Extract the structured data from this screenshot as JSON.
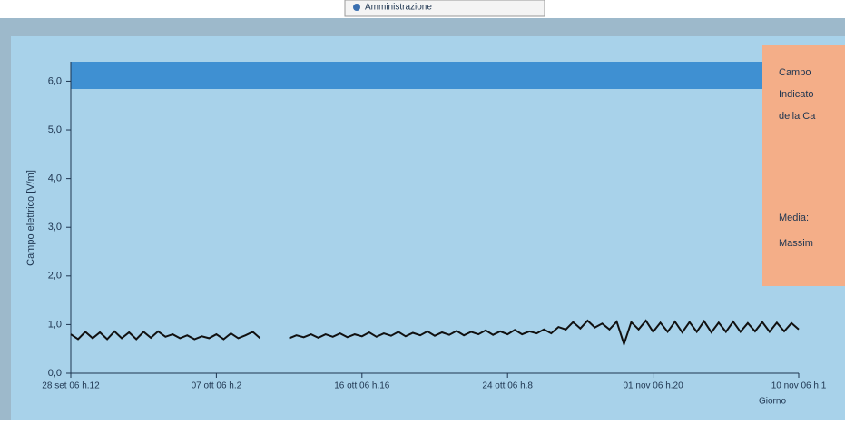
{
  "header": {
    "tab": "Amministrazione"
  },
  "chart_data": {
    "type": "line",
    "y_label": "Campo elettrico [V/m]",
    "x_label": "Giorno",
    "categories": [
      "28 set 06 h.12",
      null,
      null,
      null,
      null,
      null,
      null,
      null,
      null,
      null,
      null,
      null,
      null,
      null,
      null,
      null,
      null,
      null,
      null,
      null,
      "07 ott 06 h.2",
      null,
      null,
      null,
      null,
      null,
      null,
      null,
      null,
      null,
      null,
      null,
      null,
      null,
      null,
      null,
      null,
      null,
      null,
      null,
      "16 ott 06 h.16",
      null,
      null,
      null,
      null,
      null,
      null,
      null,
      null,
      null,
      null,
      null,
      null,
      null,
      null,
      null,
      null,
      null,
      null,
      null,
      "24 ott 06 h.8",
      null,
      null,
      null,
      null,
      null,
      null,
      null,
      null,
      null,
      null,
      null,
      null,
      null,
      null,
      null,
      null,
      null,
      null,
      null,
      "01 nov 06 h.20",
      null,
      null,
      null,
      null,
      null,
      null,
      null,
      null,
      null,
      null,
      null,
      null,
      null,
      null,
      null,
      null,
      null,
      null,
      null,
      "10 nov 06 h.1"
    ],
    "values": [
      0.8,
      0.7,
      0.85,
      0.72,
      0.84,
      0.7,
      0.86,
      0.72,
      0.84,
      0.7,
      0.85,
      0.73,
      0.86,
      0.75,
      0.8,
      0.72,
      0.78,
      0.7,
      0.76,
      0.72,
      0.8,
      0.7,
      0.82,
      0.72,
      0.78,
      0.85,
      0.72,
      null,
      null,
      null,
      0.72,
      0.78,
      0.74,
      0.8,
      0.73,
      0.8,
      0.75,
      0.82,
      0.74,
      0.8,
      0.76,
      0.84,
      0.75,
      0.82,
      0.77,
      0.85,
      0.76,
      0.83,
      0.78,
      0.86,
      0.77,
      0.84,
      0.79,
      0.87,
      0.78,
      0.85,
      0.8,
      0.88,
      0.79,
      0.86,
      0.8,
      0.89,
      0.8,
      0.86,
      0.82,
      0.9,
      0.82,
      0.95,
      0.9,
      1.05,
      0.92,
      1.08,
      0.94,
      1.02,
      0.9,
      1.06,
      0.6,
      1.05,
      0.9,
      1.08,
      0.85,
      1.04,
      0.85,
      1.06,
      0.84,
      1.05,
      0.85,
      1.07,
      0.84,
      1.04,
      0.85,
      1.06,
      0.85,
      1.03,
      0.86,
      1.05,
      0.85,
      1.04,
      0.86,
      1.03,
      0.9
    ],
    "color": "#111111",
    "ylim": [
      0,
      6.4
    ],
    "yticks": [
      {
        "value": 0,
        "label": "0,0"
      },
      {
        "value": 1,
        "label": "1,0"
      },
      {
        "value": 2,
        "label": "2,0"
      },
      {
        "value": 3,
        "label": "3,0"
      },
      {
        "value": 4,
        "label": "4,0"
      },
      {
        "value": 5,
        "label": "5,0"
      },
      {
        "value": 6,
        "label": "6,0"
      }
    ]
  },
  "side_panel": {
    "lines": [
      "Campo",
      "Indicato",
      "della Ca"
    ],
    "stats": [
      "Media:",
      "Massim"
    ]
  }
}
